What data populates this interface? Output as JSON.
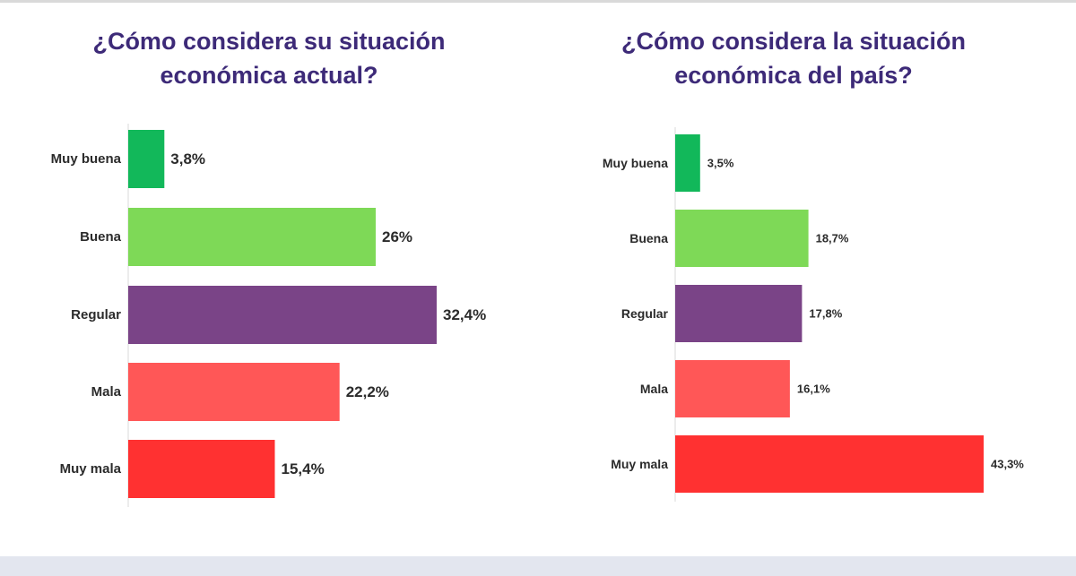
{
  "chart_data": [
    {
      "type": "bar",
      "orientation": "horizontal",
      "title": "¿Cómo considera su situación económica actual?",
      "categories": [
        "Muy buena",
        "Buena",
        "Regular",
        "Mala",
        "Muy mala"
      ],
      "values": [
        3.8,
        26,
        32.4,
        22.2,
        15.4
      ],
      "value_labels": [
        "3,8%",
        "26%",
        "32,4%",
        "22,2%",
        "15,4%"
      ],
      "colors": [
        "#12b85a",
        "#7ed957",
        "#7a4487",
        "#ff5757",
        "#ff3131"
      ],
      "xlim": [
        0,
        32.4
      ],
      "grid": false,
      "legend": "none"
    },
    {
      "type": "bar",
      "orientation": "horizontal",
      "title": "¿Cómo considera la situación económica del país?",
      "categories": [
        "Muy buena",
        "Buena",
        "Regular",
        "Mala",
        "Muy mala"
      ],
      "values": [
        3.5,
        18.7,
        17.8,
        16.1,
        43.3
      ],
      "value_labels": [
        "3,5%",
        "18,7%",
        "17,8%",
        "16,1%",
        "43,3%"
      ],
      "colors": [
        "#12b85a",
        "#7ed957",
        "#7a4487",
        "#ff5757",
        "#ff3131"
      ],
      "xlim": [
        0,
        43.3
      ],
      "grid": false,
      "legend": "none"
    }
  ]
}
